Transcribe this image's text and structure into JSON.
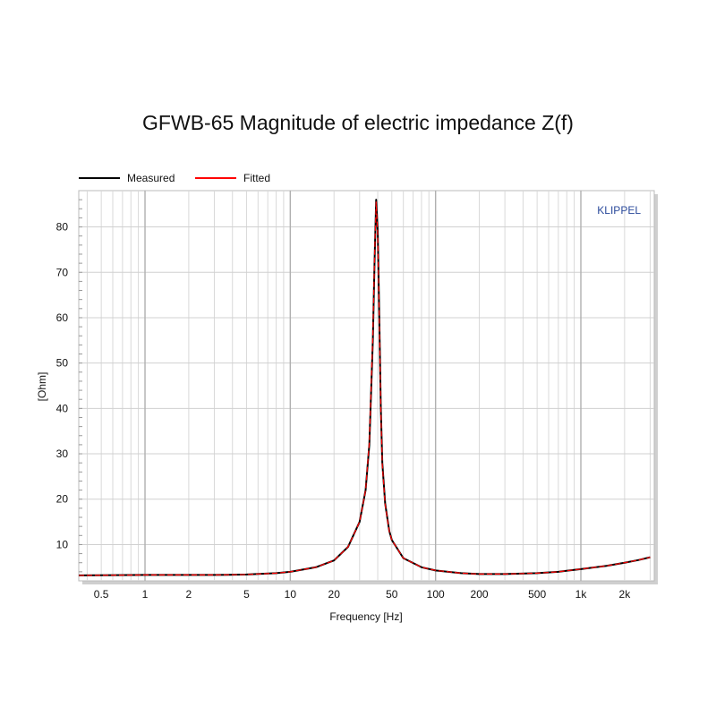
{
  "chart_data": {
    "type": "line",
    "title": "GFWB-65 Magnitude of electric impedance Z(f)",
    "xlabel": "Frequency [Hz]",
    "ylabel": "[Ohm]",
    "xscale": "log",
    "xlim": [
      0.35,
      3200
    ],
    "ylim": [
      2,
      88
    ],
    "grid": true,
    "legend_position": "top-left",
    "brand": "KLIPPEL",
    "x_ticks": [
      {
        "value": 0.5,
        "label": "0.5"
      },
      {
        "value": 1,
        "label": "1"
      },
      {
        "value": 2,
        "label": "2"
      },
      {
        "value": 5,
        "label": "5"
      },
      {
        "value": 10,
        "label": "10"
      },
      {
        "value": 20,
        "label": "20"
      },
      {
        "value": 50,
        "label": "50"
      },
      {
        "value": 100,
        "label": "100"
      },
      {
        "value": 200,
        "label": "200"
      },
      {
        "value": 500,
        "label": "500"
      },
      {
        "value": 1000,
        "label": "1k"
      },
      {
        "value": 2000,
        "label": "2k"
      }
    ],
    "y_ticks": [
      {
        "value": 10,
        "label": "10"
      },
      {
        "value": 20,
        "label": "20"
      },
      {
        "value": 30,
        "label": "30"
      },
      {
        "value": 40,
        "label": "40"
      },
      {
        "value": 50,
        "label": "50"
      },
      {
        "value": 60,
        "label": "60"
      },
      {
        "value": 70,
        "label": "70"
      },
      {
        "value": 80,
        "label": "80"
      }
    ],
    "series": [
      {
        "name": "Measured",
        "color": "#000000",
        "x": [
          0.35,
          1,
          3,
          5,
          8,
          10,
          15,
          20,
          25,
          30,
          33,
          35,
          37,
          38,
          39,
          40,
          41,
          42,
          43,
          45,
          48,
          50,
          60,
          80,
          100,
          150,
          200,
          300,
          500,
          700,
          1000,
          1500,
          2000,
          2500,
          3000
        ],
        "y": [
          3.2,
          3.3,
          3.3,
          3.4,
          3.7,
          4.0,
          5.0,
          6.5,
          9.5,
          15.0,
          22.0,
          32.0,
          55.0,
          72.0,
          86.0,
          79.0,
          60.0,
          40.0,
          28.0,
          19.0,
          13.0,
          11.0,
          7.0,
          5.0,
          4.3,
          3.7,
          3.5,
          3.5,
          3.7,
          4.0,
          4.6,
          5.3,
          6.0,
          6.6,
          7.2
        ]
      },
      {
        "name": "Fitted",
        "color": "#ff0000",
        "x": [
          0.35,
          1,
          3,
          5,
          8,
          10,
          15,
          20,
          25,
          30,
          33,
          35,
          37,
          38,
          39,
          40,
          41,
          42,
          43,
          45,
          48,
          50,
          60,
          80,
          100,
          150,
          200,
          300,
          500,
          700,
          1000,
          1500,
          2000,
          2500,
          3000
        ],
        "y": [
          3.2,
          3.3,
          3.3,
          3.4,
          3.7,
          4.0,
          5.0,
          6.5,
          9.5,
          15.0,
          22.0,
          32.5,
          56.0,
          73.0,
          85.5,
          78.0,
          59.0,
          39.5,
          27.5,
          18.8,
          12.9,
          11.0,
          7.0,
          5.0,
          4.3,
          3.7,
          3.5,
          3.5,
          3.7,
          4.0,
          4.6,
          5.3,
          6.0,
          6.6,
          7.2
        ]
      }
    ]
  }
}
